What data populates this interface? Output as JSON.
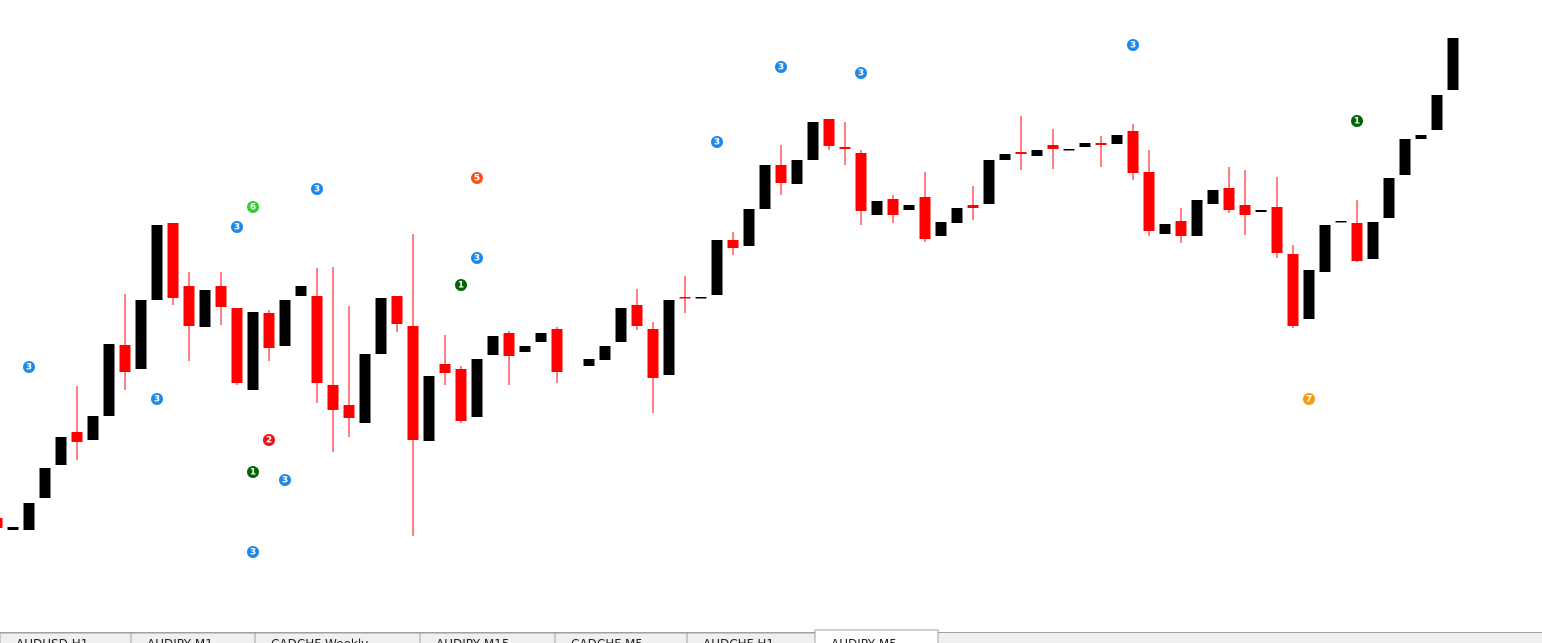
{
  "chart_data": {
    "type": "candlestick",
    "open": [
      125,
      113,
      113,
      145,
      178,
      211,
      203,
      227,
      298,
      274,
      343,
      420,
      357,
      316,
      357,
      335,
      253,
      330,
      297,
      347,
      347,
      258,
      238,
      220,
      289,
      347,
      317,
      202,
      279,
      274,
      226,
      288,
      310,
      291,
      301,
      314,
      null,
      277,
      283,
      301,
      338,
      314,
      268,
      346,
      345,
      348,
      403,
      397,
      434,
      478,
      459,
      483,
      524,
      496,
      490,
      428,
      444,
      433,
      446,
      407,
      420,
      438,
      439,
      483,
      491,
      487,
      498,
      493,
      496,
      500,
      499,
      512,
      471,
      409,
      422,
      407,
      439,
      455,
      438,
      431,
      436,
      389,
      324,
      371,
      421,
      420,
      384,
      425,
      468,
      504,
      513,
      553
    ],
    "high": [
      125,
      116,
      140,
      175,
      206,
      257,
      227,
      299,
      349,
      343,
      418,
      420,
      371,
      353,
      371,
      335,
      331,
      333,
      343,
      357,
      375,
      376,
      337,
      289,
      345,
      347,
      409,
      267,
      308,
      277,
      284,
      307,
      312,
      297,
      310,
      316,
      null,
      284,
      297,
      335,
      354,
      321,
      343,
      367,
      346,
      403,
      411,
      434,
      478,
      498,
      483,
      521,
      524,
      521,
      493,
      442,
      448,
      438,
      471,
      421,
      435,
      457,
      483,
      489,
      527,
      493,
      514,
      494,
      500,
      507,
      508,
      519,
      493,
      419,
      435,
      443,
      453,
      476,
      473,
      433,
      466,
      398,
      373,
      418,
      422,
      443,
      421,
      465,
      504,
      508,
      548,
      605
    ],
    "low": [
      115,
      113,
      113,
      145,
      178,
      183,
      203,
      227,
      253,
      274,
      343,
      338,
      282,
      316,
      318,
      258,
      253,
      282,
      297,
      347,
      240,
      191,
      206,
      220,
      289,
      311,
      107,
      202,
      258,
      220,
      226,
      288,
      258,
      291,
      301,
      260,
      null,
      277,
      283,
      301,
      313,
      230,
      268,
      330,
      345,
      348,
      388,
      397,
      434,
      448,
      459,
      483,
      493,
      478,
      418,
      428,
      420,
      433,
      401,
      407,
      420,
      423,
      439,
      483,
      473,
      487,
      474,
      493,
      496,
      476,
      499,
      463,
      407,
      409,
      400,
      407,
      439,
      430,
      408,
      431,
      385,
      315,
      324,
      371,
      421,
      381,
      384,
      425,
      468,
      504,
      513,
      553
    ],
    "close": [
      115,
      116,
      140,
      175,
      206,
      201,
      227,
      299,
      271,
      343,
      418,
      345,
      317,
      353,
      336,
      260,
      331,
      295,
      343,
      357,
      260,
      233,
      225,
      289,
      345,
      319,
      203,
      267,
      270,
      222,
      284,
      307,
      287,
      297,
      310,
      271,
      null,
      284,
      297,
      335,
      317,
      265,
      343,
      345,
      346,
      403,
      395,
      434,
      478,
      460,
      483,
      521,
      497,
      494,
      432,
      442,
      428,
      438,
      404,
      421,
      435,
      435,
      483,
      489,
      489,
      493,
      494,
      494,
      500,
      498,
      508,
      470,
      412,
      419,
      407,
      443,
      453,
      433,
      428,
      433,
      390,
      317,
      373,
      418,
      422,
      382,
      421,
      465,
      504,
      508,
      548,
      605
    ],
    "up_color": "#000000",
    "down_color": "#ff0000",
    "ylim": [
      0,
      643
    ],
    "markers": [
      {
        "index": 2,
        "value": 276,
        "label": "3",
        "color": "#1e88e5"
      },
      {
        "index": 10,
        "value": 244,
        "label": "3",
        "color": "#1e88e5"
      },
      {
        "index": 15,
        "value": 416,
        "label": "3",
        "color": "#1e88e5"
      },
      {
        "index": 16,
        "value": 436,
        "label": "6",
        "color": "#33cc33"
      },
      {
        "index": 20,
        "value": 454,
        "label": "3",
        "color": "#1e88e5"
      },
      {
        "index": 17,
        "value": 203,
        "label": "2",
        "color": "#ee1111"
      },
      {
        "index": 16,
        "value": 171,
        "label": "1",
        "color": "#006400"
      },
      {
        "index": 18,
        "value": 163,
        "label": "3",
        "color": "#1e88e5"
      },
      {
        "index": 16,
        "value": 91,
        "label": "3",
        "color": "#1e88e5"
      },
      {
        "index": 30,
        "value": 465,
        "label": "5",
        "color": "#f4511e"
      },
      {
        "index": 30,
        "value": 385,
        "label": "3",
        "color": "#1e88e5"
      },
      {
        "index": 29,
        "value": 358,
        "label": "1",
        "color": "#006400"
      },
      {
        "index": 45,
        "value": 501,
        "label": "3",
        "color": "#1e88e5"
      },
      {
        "index": 49,
        "value": 576,
        "label": "3",
        "color": "#1e88e5"
      },
      {
        "index": 54,
        "value": 570,
        "label": "3",
        "color": "#1e88e5"
      },
      {
        "index": 71,
        "value": 598,
        "label": "3",
        "color": "#1e88e5"
      },
      {
        "index": 85,
        "value": 522,
        "label": "1",
        "color": "#006400"
      },
      {
        "index": 82,
        "value": 244,
        "label": "7",
        "color": "#f39c12"
      }
    ]
  },
  "tabs": {
    "labels": [
      "AUDUSD,H1",
      "AUDJPY,M1",
      "CADCHF,Weekly",
      "AUDJPY,M15",
      "CADCHF,M5",
      "AUDCHF,H1",
      "AUDJPY,M5"
    ],
    "active": 6
  }
}
